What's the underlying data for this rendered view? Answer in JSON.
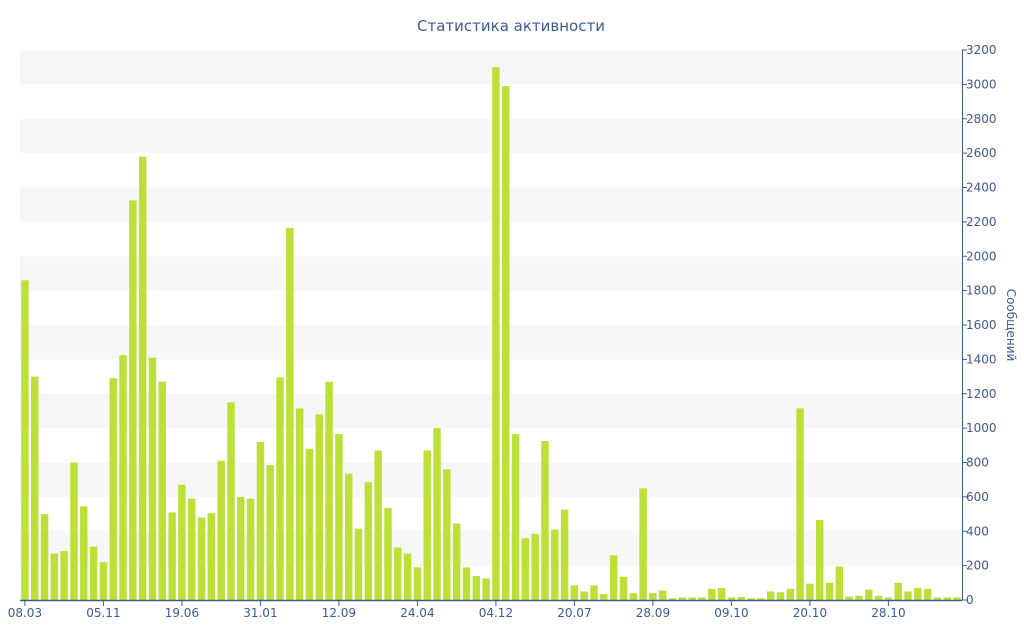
{
  "chart_data": {
    "type": "bar",
    "title": "Статистика активности",
    "xlabel": "",
    "ylabel": "Сообщений",
    "ylim": [
      0,
      3200
    ],
    "yticks": [
      0,
      200,
      400,
      600,
      800,
      1000,
      1200,
      1400,
      1600,
      1800,
      2000,
      2200,
      2400,
      2600,
      2800,
      3000,
      3200
    ],
    "grid": "alternating horizontal bands",
    "legend": "none",
    "colors": {
      "bar": "#bde038",
      "text": "#3e5a8e",
      "band": "#f7f7f7"
    },
    "x_tick_labels": [
      {
        "index": 0,
        "label": "08.03"
      },
      {
        "index": 8,
        "label": "05.11"
      },
      {
        "index": 16,
        "label": "19.06"
      },
      {
        "index": 24,
        "label": "31.01"
      },
      {
        "index": 32,
        "label": "12.09"
      },
      {
        "index": 40,
        "label": "24.04"
      },
      {
        "index": 48,
        "label": "04.12"
      },
      {
        "index": 56,
        "label": "20.07"
      },
      {
        "index": 64,
        "label": "28.09"
      },
      {
        "index": 72,
        "label": "09.10"
      },
      {
        "index": 80,
        "label": "20.10"
      },
      {
        "index": 88,
        "label": "28.10"
      }
    ],
    "values": [
      1860,
      1300,
      500,
      270,
      285,
      800,
      545,
      310,
      220,
      1290,
      1425,
      2325,
      2580,
      1410,
      1270,
      510,
      670,
      590,
      480,
      505,
      810,
      1150,
      600,
      590,
      920,
      785,
      1295,
      2165,
      1115,
      880,
      1080,
      1270,
      965,
      735,
      415,
      685,
      870,
      535,
      305,
      270,
      190,
      870,
      1000,
      760,
      445,
      190,
      140,
      125,
      3100,
      2990,
      965,
      360,
      385,
      925,
      410,
      525,
      85,
      50,
      85,
      35,
      260,
      135,
      40,
      650,
      40,
      55,
      10,
      15,
      15,
      15,
      65,
      70,
      15,
      18,
      10,
      10,
      50,
      45,
      65,
      1115,
      95,
      465,
      100,
      195,
      20,
      25,
      60,
      25,
      15,
      100,
      50,
      70,
      65,
      15,
      15,
      15
    ]
  }
}
